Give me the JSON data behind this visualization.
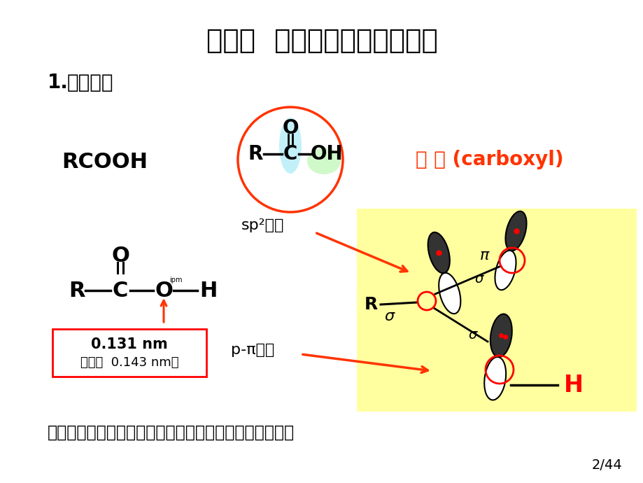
{
  "title": "第一节  羧酸结构、分类和命名",
  "section_label_num": "1.",
  "section_label_text": "羧酸结构",
  "rcooh_text": "RCOOH",
  "carboxyl_label": "羧 基 (carboxyl)",
  "sp2_label": "sp²杂化",
  "ppi_label": "p-π共轭",
  "bottom_text": "羧基不是羰基与羟基简单加合，而是一个整体一官能基。",
  "page_num": "2/44",
  "box_line1": "0.131 nm",
  "box_line2": "（醇：  0.143 nm）",
  "bg_color": "#ffffff",
  "title_color": "#000000",
  "carboxyl_color": "#ff3300",
  "yellow_bg": "#ffffa0",
  "circle_color": "#ff3300",
  "arrow_color": "#ff3300",
  "cyan_fill": "#b8eef8",
  "green_fill": "#c8f8c0"
}
